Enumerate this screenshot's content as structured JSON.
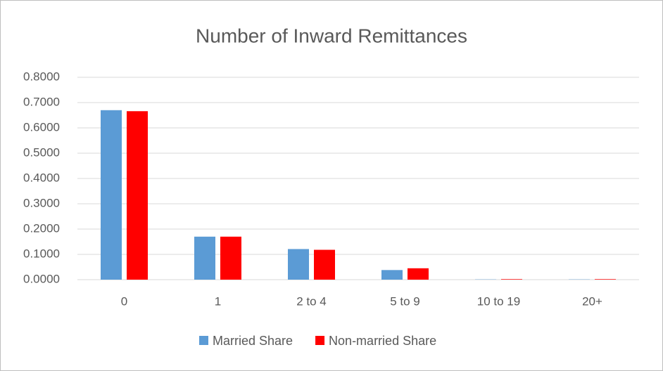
{
  "chart_data": {
    "type": "bar",
    "title": "Number of Inward Remittances",
    "categories": [
      "0",
      "1",
      "2 to 4",
      "5 to 9",
      "10 to 19",
      "20+"
    ],
    "series": [
      {
        "name": "Married Share",
        "color": "#5b9bd5",
        "values": [
          0.67,
          0.17,
          0.121,
          0.038,
          0.001,
          0.001
        ]
      },
      {
        "name": "Non-married Share",
        "color": "#ff0000",
        "values": [
          0.666,
          0.17,
          0.118,
          0.045,
          0.002,
          0.002
        ]
      }
    ],
    "ylim": [
      0,
      0.8
    ],
    "yticks": [
      {
        "value": 0,
        "label": "0.0000"
      },
      {
        "value": 0.1,
        "label": "0.1000"
      },
      {
        "value": 0.2,
        "label": "0.2000"
      },
      {
        "value": 0.3,
        "label": "0.3000"
      },
      {
        "value": 0.4,
        "label": "0.4000"
      },
      {
        "value": 0.5,
        "label": "0.5000"
      },
      {
        "value": 0.6,
        "label": "0.6000"
      },
      {
        "value": 0.7,
        "label": "0.7000"
      },
      {
        "value": 0.8,
        "label": "0.8000"
      }
    ],
    "grid": true,
    "legend": "bottom"
  }
}
